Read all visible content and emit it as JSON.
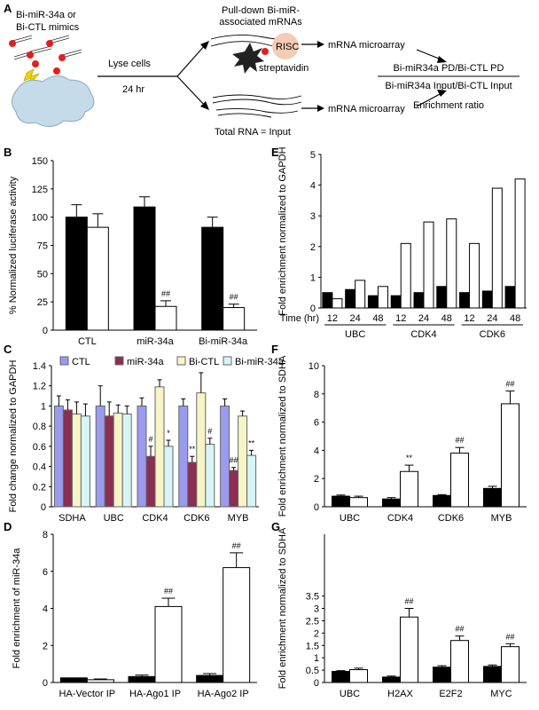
{
  "figure": {
    "panel_letters": [
      "A",
      "B",
      "C",
      "D",
      "E",
      "F",
      "G"
    ]
  },
  "schematic": {
    "mimic_label_line1": "Bi-miR-34a or",
    "mimic_label_line2": "Bi-CTL mimics",
    "lyse_label": "Lyse cells",
    "time_label": "24 hr",
    "pulldown_line1": "Pull-down Bi-miR-",
    "pulldown_line2": "associated mRNAs",
    "risc_label": "RISC",
    "streptavidin_label": "streptavidin",
    "microarray_top": "mRNA microarray",
    "microarray_bottom": "mRNA microarray",
    "total_rna_label": "Total RNA = Input",
    "ratio_numerator": "Bi-miR34a PD/Bi-CTL PD",
    "ratio_denominator": "Bi-miR34a Input/Bi-CTL Input",
    "enrichment_label": "Enrichment ratio"
  },
  "chart_data": [
    {
      "panel": "B",
      "type": "bar",
      "ylabel": "% Normalized luciferase activity",
      "ylim": [
        0,
        150
      ],
      "yticks": [
        0,
        25,
        50,
        75,
        100,
        125,
        150
      ],
      "categories": [
        "CTL",
        "miR-34a",
        "Bi-miR-34a"
      ],
      "series": [
        {
          "color": "#000000",
          "values": [
            100,
            109,
            91
          ],
          "errors": [
            11,
            9,
            9
          ]
        },
        {
          "color": "#ffffff",
          "values": [
            91,
            21,
            20
          ],
          "errors": [
            12,
            5,
            3
          ]
        }
      ],
      "annotations": [
        {
          "category": 1,
          "series": 1,
          "text": "##"
        },
        {
          "category": 2,
          "series": 1,
          "text": "##"
        }
      ]
    },
    {
      "panel": "C",
      "type": "bar",
      "ylabel": "Fold change normalized to GAPDH",
      "ylim": [
        0,
        1.4
      ],
      "yticks": [
        "0",
        "0.2",
        "0.4",
        "0.6",
        "0.8",
        "1",
        "1.2",
        "1.4"
      ],
      "yticks_values": [
        0,
        0.2,
        0.4,
        0.6,
        0.8,
        1.0,
        1.2,
        1.4
      ],
      "categories": [
        "SDHA",
        "UBC",
        "CDK4",
        "CDK6",
        "MYB"
      ],
      "legend_position": "top",
      "series": [
        {
          "name": "CTL",
          "color": "#9a9bee",
          "values": [
            1.0,
            1.0,
            1.0,
            1.0,
            1.0
          ],
          "errors": [
            0.1,
            0.2,
            0.08,
            0.07,
            0.07
          ]
        },
        {
          "name": "miR-34a",
          "color": "#8c2d52",
          "values": [
            0.96,
            0.9,
            0.5,
            0.44,
            0.36
          ],
          "errors": [
            0.1,
            0.14,
            0.1,
            0.06,
            0.03
          ]
        },
        {
          "name": "Bi-CTL",
          "color": "#f7f5c6",
          "values": [
            0.92,
            0.93,
            1.19,
            1.13,
            0.9
          ],
          "errors": [
            0.12,
            0.08,
            0.07,
            0.2,
            0.05
          ]
        },
        {
          "name": "Bi-miR-34a",
          "color": "#d8f5f5",
          "values": [
            0.9,
            0.92,
            0.6,
            0.62,
            0.51
          ],
          "errors": [
            0.12,
            0.08,
            0.06,
            0.06,
            0.05
          ]
        }
      ],
      "annotations": [
        {
          "category": 2,
          "series": 1,
          "text": "#"
        },
        {
          "category": 2,
          "series": 3,
          "text": "*"
        },
        {
          "category": 3,
          "series": 1,
          "text": "**"
        },
        {
          "category": 3,
          "series": 3,
          "text": "#"
        },
        {
          "category": 4,
          "series": 1,
          "text": "##"
        },
        {
          "category": 4,
          "series": 3,
          "text": "**"
        }
      ]
    },
    {
      "panel": "D",
      "type": "bar",
      "ylabel": "Fold enrichment of miR-34a",
      "ylim": [
        0,
        8
      ],
      "yticks": [
        0,
        2,
        4,
        6,
        8
      ],
      "categories": [
        "HA-Vector IP",
        "HA-Ago1 IP",
        "HA-Ago2 IP"
      ],
      "series": [
        {
          "color": "#000000",
          "values": [
            0.25,
            0.32,
            0.38
          ],
          "errors": [
            0,
            0.08,
            0.1
          ]
        },
        {
          "color": "#ffffff",
          "values": [
            0.15,
            4.1,
            6.2
          ],
          "errors": [
            0.04,
            0.45,
            0.8
          ]
        }
      ],
      "annotations": [
        {
          "category": 1,
          "series": 1,
          "text": "##"
        },
        {
          "category": 2,
          "series": 1,
          "text": "##"
        }
      ]
    },
    {
      "panel": "E",
      "type": "bar",
      "ylabel": "Fold enrichment normalized to GAPDH",
      "ylim": [
        0,
        5
      ],
      "yticks": [
        0,
        1,
        2,
        3,
        4,
        5
      ],
      "axis_title": "Time (hr)",
      "groups": [
        "UBC",
        "CDK4",
        "CDK6"
      ],
      "timepoints": [
        "12",
        "24",
        "48"
      ],
      "series": [
        {
          "color": "#000000",
          "values": [
            [
              0.5,
              0.6,
              0.4
            ],
            [
              0.4,
              0.5,
              0.7
            ],
            [
              0.5,
              0.55,
              0.7
            ]
          ]
        },
        {
          "color": "#ffffff",
          "values": [
            [
              0.3,
              0.9,
              0.7
            ],
            [
              2.1,
              2.8,
              2.9
            ],
            [
              2.1,
              3.9,
              4.2
            ]
          ]
        }
      ]
    },
    {
      "panel": "F",
      "type": "bar",
      "ylabel": "Fold enrichment normalized to SDHA",
      "ylim": [
        0,
        10
      ],
      "yticks": [
        0,
        2,
        4,
        6,
        8,
        10
      ],
      "categories": [
        "UBC",
        "CDK4",
        "CDK6",
        "MYB"
      ],
      "series": [
        {
          "color": "#000000",
          "values": [
            0.75,
            0.55,
            0.8,
            1.3
          ],
          "errors": [
            0.08,
            0.1,
            0.06,
            0.15
          ]
        },
        {
          "color": "#ffffff",
          "values": [
            0.65,
            2.5,
            3.8,
            7.3
          ],
          "errors": [
            0.1,
            0.45,
            0.4,
            0.9
          ]
        }
      ],
      "annotations": [
        {
          "category": 1,
          "series": 1,
          "text": "**"
        },
        {
          "category": 2,
          "series": 1,
          "text": "##"
        },
        {
          "category": 3,
          "series": 1,
          "text": "##"
        }
      ]
    },
    {
      "panel": "G",
      "type": "bar",
      "ylabel": "Fold enrichment normalized to SDHA",
      "ylim": [
        0,
        6
      ],
      "yticks": [
        "0",
        "0.5",
        "1",
        "1.5",
        "2",
        "2.5",
        "3",
        "3.5"
      ],
      "yticks_values": [
        0,
        0.5,
        1,
        1.5,
        2,
        2.5,
        3,
        3.5
      ],
      "categories": [
        "UBC",
        "H2AX",
        "E2F2",
        "MYC"
      ],
      "series": [
        {
          "color": "#000000",
          "values": [
            0.45,
            0.22,
            0.62,
            0.65
          ],
          "errors": [
            0.03,
            0.04,
            0.06,
            0.06
          ]
        },
        {
          "color": "#ffffff",
          "values": [
            0.52,
            2.65,
            1.7,
            1.45
          ],
          "errors": [
            0.06,
            0.35,
            0.18,
            0.12
          ]
        }
      ],
      "annotations": [
        {
          "category": 1,
          "series": 1,
          "text": "##"
        },
        {
          "category": 2,
          "series": 1,
          "text": "##"
        },
        {
          "category": 3,
          "series": 1,
          "text": "##"
        }
      ]
    }
  ]
}
